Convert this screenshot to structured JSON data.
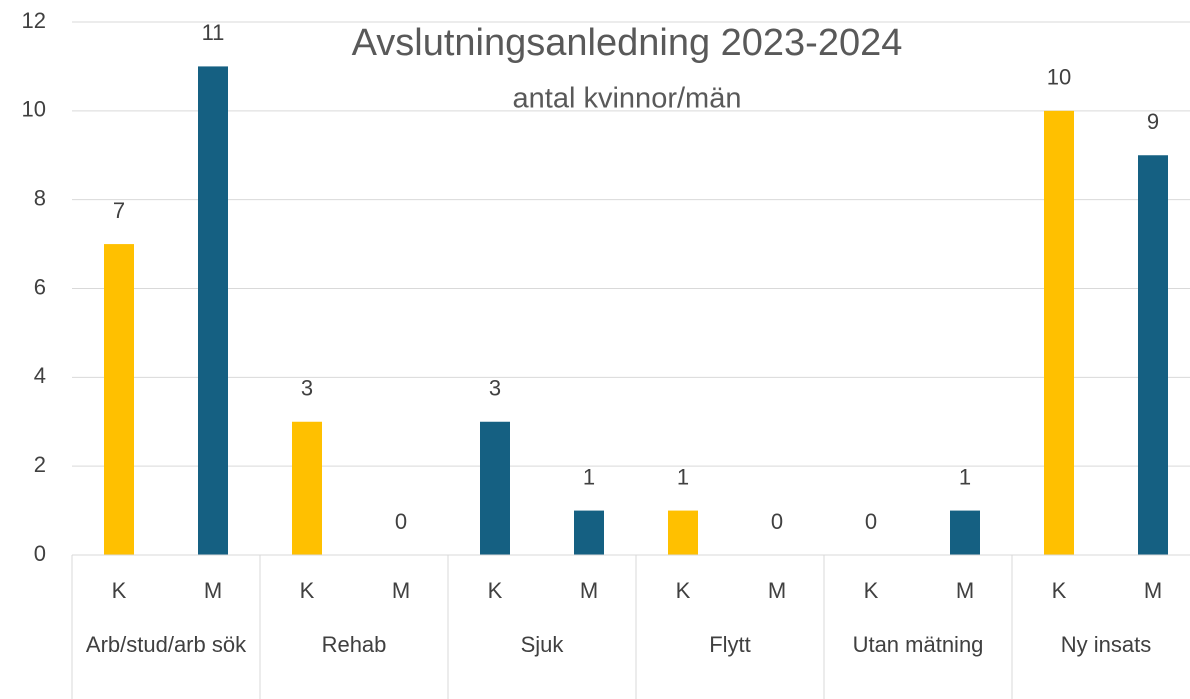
{
  "chart_data": {
    "type": "bar",
    "title": "Avslutningsanledning 2023-2024",
    "subtitle": "antal kvinnor/män",
    "categories": [
      "K",
      "M",
      "K",
      "M",
      "K",
      "M",
      "K",
      "M",
      "K",
      "M",
      "K",
      "M"
    ],
    "groups": [
      "Arb/stud/arb sök",
      "Rehab",
      "Sjuk",
      "Flytt",
      "Utan mätning",
      "Ny insats"
    ],
    "values": [
      7,
      11,
      3,
      0,
      3,
      1,
      1,
      0,
      0,
      1,
      10,
      9
    ],
    "colors": [
      "#FFC000",
      "#156082",
      "#FFC000",
      "#156082",
      "#156082",
      "#156082",
      "#FFC000",
      "#156082",
      "#FFC000",
      "#156082",
      "#FFC000",
      "#156082"
    ],
    "ylim": [
      0,
      12
    ],
    "yticks": [
      0,
      2,
      4,
      6,
      8,
      10,
      12
    ],
    "grid": true
  }
}
